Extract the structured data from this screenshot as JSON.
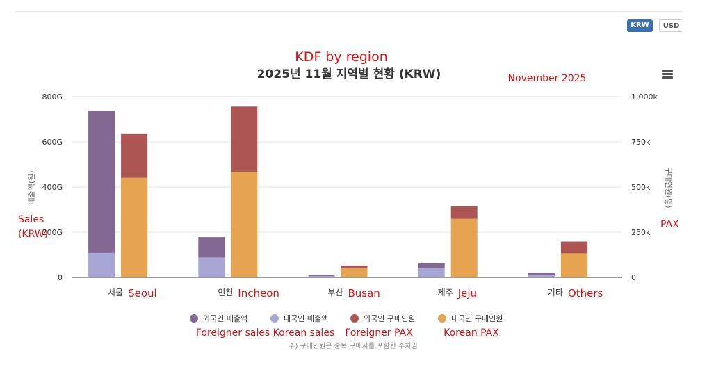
{
  "currency_buttons": {
    "krw": "KRW",
    "usd": "USD"
  },
  "annotations": {
    "title_en": "KDF by region",
    "date_en": "November 2025",
    "left_axis_en_1": "Sales",
    "left_axis_en_2": "(KRW)",
    "right_axis_en": "PAX",
    "categories_en": [
      "Seoul",
      "Incheon",
      "Busan",
      "Jeju",
      "Others"
    ],
    "legend_en": [
      "Foreigner sales",
      "Korean sales",
      "Foreigner PAX",
      "Korean PAX"
    ]
  },
  "footnote": "주) 구매인원은 중복 구매자를 포함한 수치임",
  "colors": {
    "foreign_sales": "#846894",
    "korean_sales": "#a8a6d4",
    "foreign_pax": "#ad5552",
    "korean_pax": "#e6a451",
    "annotation": "#dd1111"
  },
  "chart_data": {
    "type": "bar",
    "title": "2025년 11월 지역별 현황 (KRW)",
    "categories": [
      "서울",
      "인천",
      "부산",
      "제주",
      "기타"
    ],
    "ylabel": "매출액(원)",
    "y2label": "구매인원(명)",
    "ylim": [
      0,
      800
    ],
    "y2lim": [
      0,
      1000
    ],
    "yticks": [
      "0",
      "200G",
      "400G",
      "600G",
      "800G"
    ],
    "y2ticks": [
      "0",
      "250k",
      "500k",
      "750k",
      "1,000k"
    ],
    "legend_position": "bottom",
    "grid": true,
    "stacks": [
      {
        "axis": "left",
        "unit": "G KRW",
        "series": [
          {
            "name": "내국인 매출액",
            "color": "#a8a6d4",
            "values": [
              108,
              88,
              6,
              40,
              10
            ]
          },
          {
            "name": "외국인 매출액",
            "color": "#846894",
            "values": [
              630,
              90,
              6,
              22,
              10
            ]
          }
        ]
      },
      {
        "axis": "right",
        "unit": "k persons",
        "series": [
          {
            "name": "내국인 구매인원",
            "color": "#e6a451",
            "values": [
              551,
              584,
              50,
              324,
              133
            ]
          },
          {
            "name": "외국인 구매인원",
            "color": "#ad5552",
            "values": [
              242,
              361,
              15,
              69,
              65
            ]
          }
        ]
      }
    ],
    "legend": [
      "외국인 매출액",
      "내국인 매출액",
      "외국인 구매인원",
      "내국인 구매인원"
    ]
  }
}
